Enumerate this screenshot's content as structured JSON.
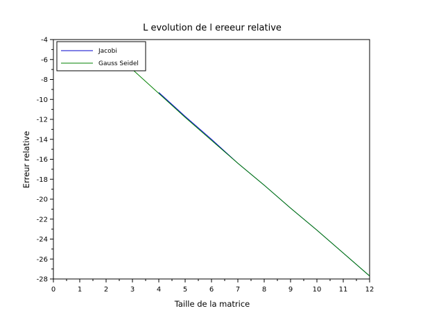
{
  "chart_data": {
    "type": "line",
    "title": "L evolution de l ereeur relative",
    "xlabel": "Taille de la matrice",
    "ylabel": "Erreur relative",
    "xlim": [
      0,
      12
    ],
    "ylim": [
      -28,
      -4
    ],
    "xticks": [
      0,
      1,
      2,
      3,
      4,
      5,
      6,
      7,
      8,
      9,
      10,
      11,
      12
    ],
    "yticks": [
      -28,
      -26,
      -24,
      -22,
      -20,
      -18,
      -16,
      -14,
      -12,
      -10,
      -8,
      -6,
      -4
    ],
    "grid": false,
    "legend_position": "top-left",
    "series": [
      {
        "name": "Jacobi",
        "color": "#0000cc",
        "x": [
          4,
          5,
          6,
          7,
          8,
          9,
          10,
          11,
          12
        ],
        "y": [
          -9.3,
          -11.7,
          -14.0,
          -16.4,
          -18.6,
          -20.9,
          -23.1,
          -25.4,
          -27.7
        ]
      },
      {
        "name": "Gauss Seidel",
        "color": "#008000",
        "x": [
          2,
          3,
          4,
          5,
          6,
          7,
          8,
          9,
          10,
          11,
          12
        ],
        "y": [
          -4.7,
          -7.0,
          -9.4,
          -11.8,
          -14.1,
          -16.4,
          -18.6,
          -20.9,
          -23.1,
          -25.4,
          -27.7
        ]
      }
    ]
  }
}
